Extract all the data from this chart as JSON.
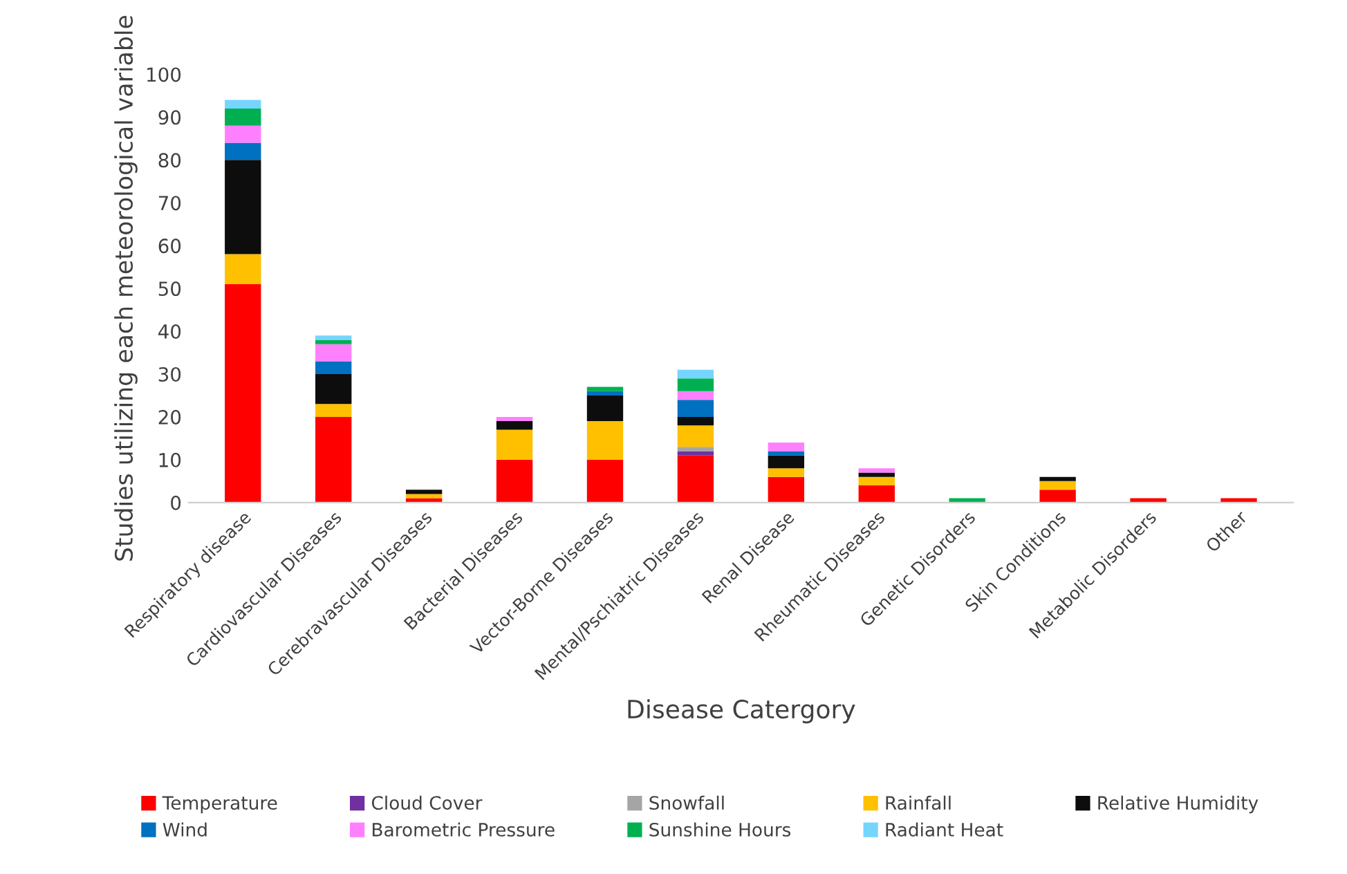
{
  "chart_data": {
    "type": "bar",
    "stacked": true,
    "xlabel": "Disease Catergory",
    "ylabel": "Studies utilizing each meteorological variable",
    "categories": [
      "Respiratory disease",
      "Cardiovascular Diseases",
      "Cerebravascular Diseases",
      "Bacterial Diseases",
      "Vector-Borne Diseases",
      "Mental/Pschiatric Diseases",
      "Renal Disease",
      "Rheumatic Diseases",
      "Genetic Disorders",
      "Skin Conditions",
      "Metabolic Disorders",
      "Other"
    ],
    "ylim": [
      0,
      100
    ],
    "yticks": [
      0,
      10,
      20,
      30,
      40,
      50,
      60,
      70,
      80,
      90,
      100
    ],
    "grid": false,
    "legend": "bottom",
    "series": [
      {
        "name": "Temperature",
        "color": "#ff0000",
        "values": [
          51,
          20,
          1,
          10,
          10,
          11,
          6,
          4,
          0,
          3,
          1,
          1
        ]
      },
      {
        "name": "Cloud Cover",
        "color": "#7030a0",
        "values": [
          0,
          0,
          0,
          0,
          0,
          1,
          0,
          0,
          0,
          0,
          0,
          0
        ]
      },
      {
        "name": "Snowfall",
        "color": "#a5a5a5",
        "values": [
          0,
          0,
          0,
          0,
          0,
          1,
          0,
          0,
          0,
          0,
          0,
          0
        ]
      },
      {
        "name": "Rainfall",
        "color": "#ffc000",
        "values": [
          7,
          3,
          1,
          7,
          9,
          5,
          2,
          2,
          0,
          2,
          0,
          0
        ]
      },
      {
        "name": "Relative Humidity",
        "color": "#0d0d0d",
        "values": [
          22,
          7,
          1,
          2,
          6,
          2,
          3,
          1,
          0,
          1,
          0,
          0
        ]
      },
      {
        "name": "Wind",
        "color": "#0070c0",
        "values": [
          4,
          3,
          0,
          0,
          1,
          4,
          1,
          0,
          0,
          0,
          0,
          0
        ]
      },
      {
        "name": "Barometric Pressure",
        "color": "#ff80ff",
        "values": [
          4,
          4,
          0,
          1,
          0,
          2,
          2,
          1,
          0,
          0,
          0,
          0
        ]
      },
      {
        "name": "Sunshine Hours",
        "color": "#00b050",
        "values": [
          4,
          1,
          0,
          0,
          1,
          3,
          0,
          0,
          1,
          0,
          0,
          0
        ]
      },
      {
        "name": "Radiant Heat",
        "color": "#75d5ff",
        "values": [
          2,
          1,
          0,
          0,
          0,
          2,
          0,
          0,
          0,
          0,
          0,
          0
        ]
      }
    ]
  }
}
